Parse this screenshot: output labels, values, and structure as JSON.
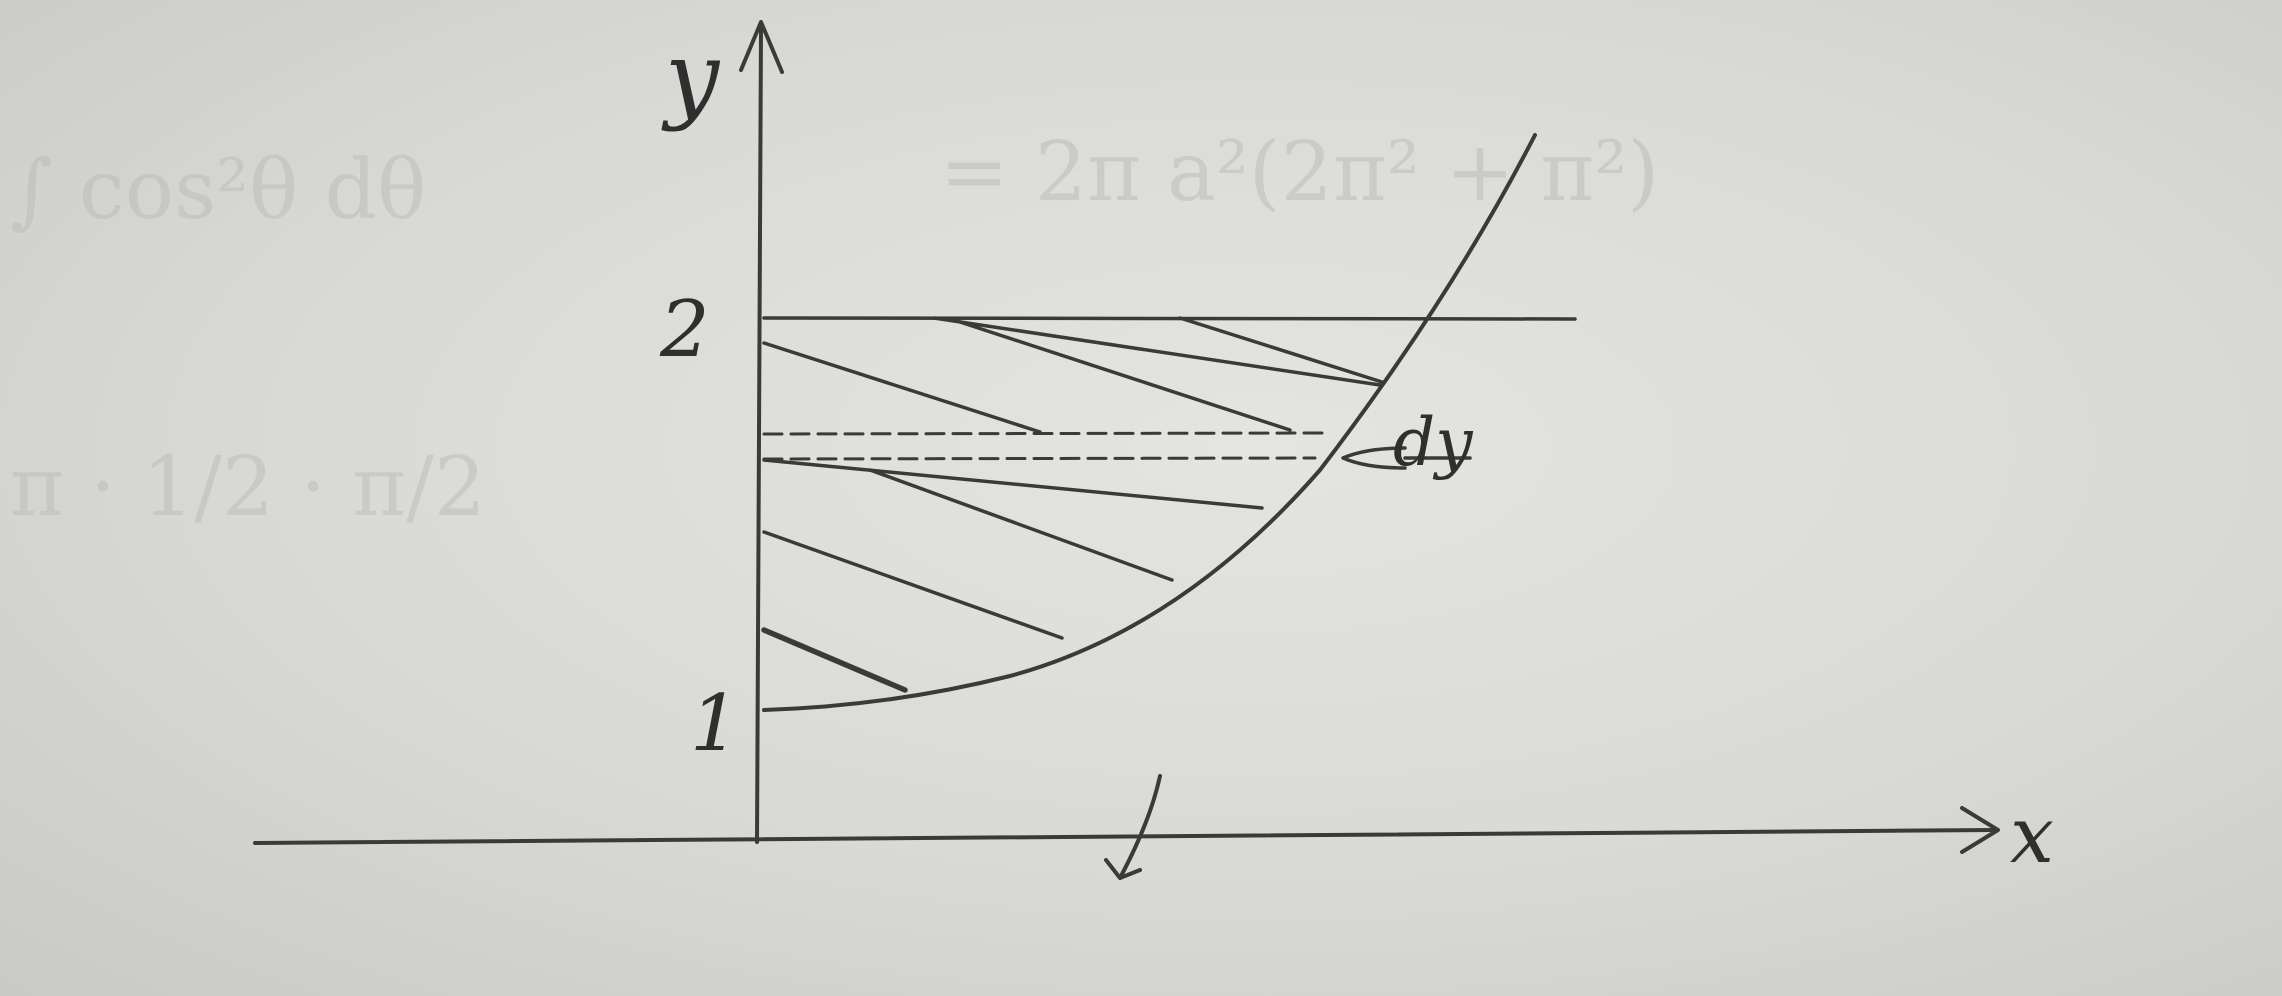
{
  "diagram": {
    "axis_x_label": "x",
    "axis_y_label": "y",
    "tick_y_1": "1",
    "tick_y_2": "2",
    "strip_label": "dy",
    "ink_color": "#3a3a3a",
    "paper_color": "#dcdcd8"
  },
  "show_through": {
    "line_1": "∫ cos²θ dθ",
    "line_2": "= 2π a²(2π² + π²)",
    "line_3": "π · 1/2 · π/2"
  }
}
